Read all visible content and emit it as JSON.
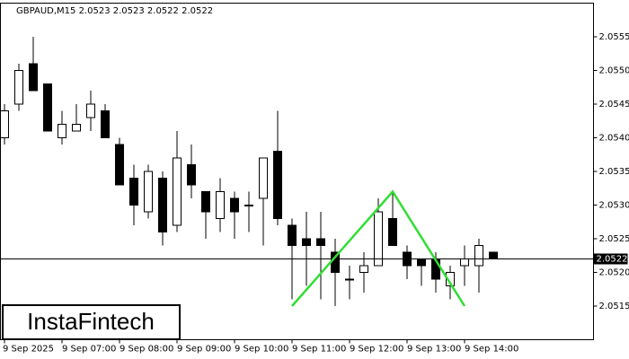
{
  "chart_data": {
    "type": "candlestick",
    "title": "GBPAUD,M15  2.0523 2.0523 2.0522 2.0522",
    "logo": "InstaFintech",
    "categories": [
      "9 Sep 2025",
      null,
      null,
      null,
      "9 Sep 07:00",
      null,
      null,
      null,
      "9 Sep 08:00",
      null,
      null,
      null,
      "9 Sep 09:00",
      null,
      null,
      null,
      "9 Sep 10:00",
      null,
      null,
      null,
      "9 Sep 11:00",
      null,
      null,
      null,
      "9 Sep 12:00",
      null,
      null,
      null,
      "9 Sep 13:00",
      null,
      null,
      null,
      "9 Sep 14:00",
      null,
      null
    ],
    "open": [
      2.054,
      2.0545,
      2.0551,
      2.0548,
      2.054,
      2.0541,
      2.0543,
      2.0544,
      2.0539,
      2.0534,
      2.0529,
      2.0534,
      2.0527,
      2.0536,
      2.0532,
      2.0528,
      2.0531,
      2.053,
      2.0531,
      2.0538,
      2.0527,
      2.0525,
      2.0525,
      2.0523,
      2.0519,
      2.052,
      2.0521,
      2.0528,
      2.0523,
      2.0522,
      2.0522,
      2.0518,
      2.0521,
      2.0521,
      2.0523
    ],
    "high": [
      2.0545,
      2.0551,
      2.0555,
      2.0548,
      2.0544,
      2.0545,
      2.0547,
      2.0545,
      2.054,
      2.0536,
      2.0536,
      2.0535,
      2.0541,
      2.0539,
      2.0532,
      2.0534,
      2.0532,
      2.0532,
      2.0537,
      2.0544,
      2.0528,
      2.0529,
      2.0529,
      2.0525,
      2.0521,
      2.0523,
      2.0531,
      2.0532,
      2.0524,
      2.0522,
      2.0523,
      2.0521,
      2.0524,
      2.0525,
      2.0523
    ],
    "low": [
      2.0539,
      2.0544,
      2.0547,
      2.0541,
      2.0539,
      2.0541,
      2.0541,
      2.054,
      2.0533,
      2.0527,
      2.0528,
      2.0524,
      2.0526,
      2.0531,
      2.0525,
      2.0526,
      2.0525,
      2.0526,
      2.0524,
      2.0527,
      2.0516,
      2.0518,
      2.0516,
      2.0515,
      2.0516,
      2.0517,
      2.0521,
      2.0524,
      2.0519,
      2.0518,
      2.0517,
      2.0516,
      2.0518,
      2.0517,
      2.0522
    ],
    "close": [
      2.0544,
      2.055,
      2.0547,
      2.0541,
      2.0542,
      2.0542,
      2.0545,
      2.054,
      2.0533,
      2.053,
      2.0535,
      2.0526,
      2.0537,
      2.0533,
      2.0529,
      2.0532,
      2.0529,
      2.053,
      2.0537,
      2.0528,
      2.0524,
      2.0524,
      2.0524,
      2.052,
      2.0519,
      2.0521,
      2.0529,
      2.0524,
      2.0521,
      2.0521,
      2.0519,
      2.052,
      2.0522,
      2.0524,
      2.0522
    ],
    "up_color": "#ffffff",
    "down_color": "#000000",
    "ylim": [
      2.051,
      2.056
    ],
    "yticks": [
      2.0515,
      {
        "value": 2.052,
        "label": "2.0520"
      },
      2.0525,
      {
        "value": 2.053,
        "label": "2.0530"
      },
      2.0535,
      {
        "value": 2.054,
        "label": "2.0540"
      },
      2.0545,
      {
        "value": 2.055,
        "label": "2.0550"
      },
      2.0555
    ],
    "current_price": 2.0522,
    "pattern": {
      "color": "#33dd33",
      "x": [
        20,
        27,
        32
      ],
      "y": [
        2.0515,
        2.0532,
        2.0515
      ]
    }
  }
}
